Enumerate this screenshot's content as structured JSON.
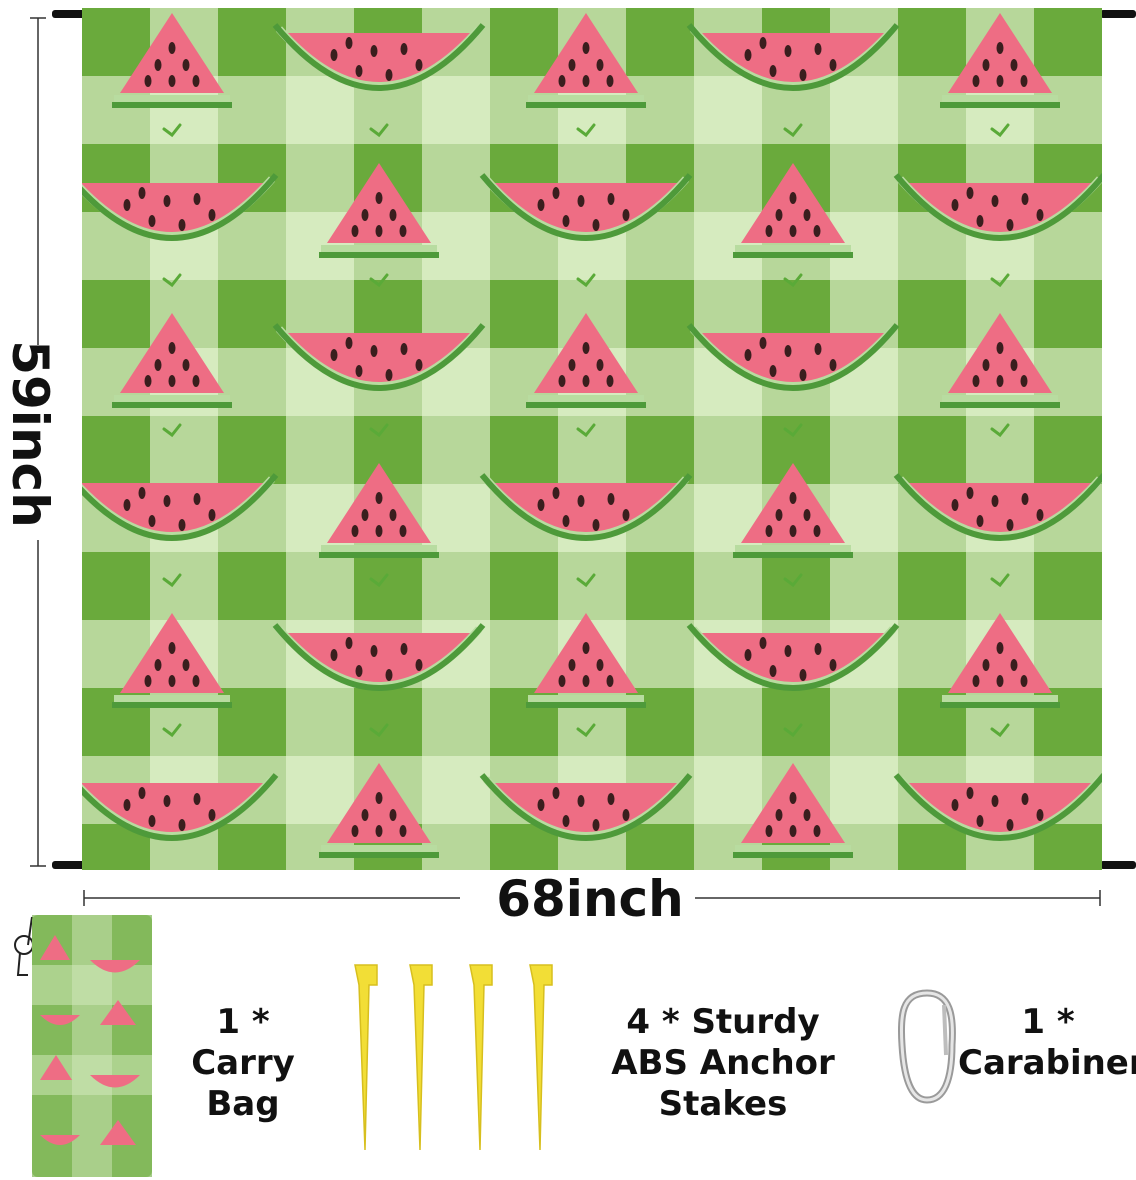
{
  "dimensions": {
    "width_label": "68inch",
    "height_label": "59inch"
  },
  "accessories": [
    {
      "qty": "1 *",
      "name": "Carry Bag"
    },
    {
      "qty": "4 * Sturdy",
      "name": "ABS Anchor Stakes"
    },
    {
      "qty": "1 *",
      "name": "Carabiner"
    }
  ],
  "colors": {
    "dark_green": "#6aaa3c",
    "mid_green": "#a9cf8a",
    "light_green": "#d6ebbf",
    "melon_red": "#ee6d84",
    "rind_green": "#4e9a3a",
    "stake_yellow": "#f2de36"
  }
}
